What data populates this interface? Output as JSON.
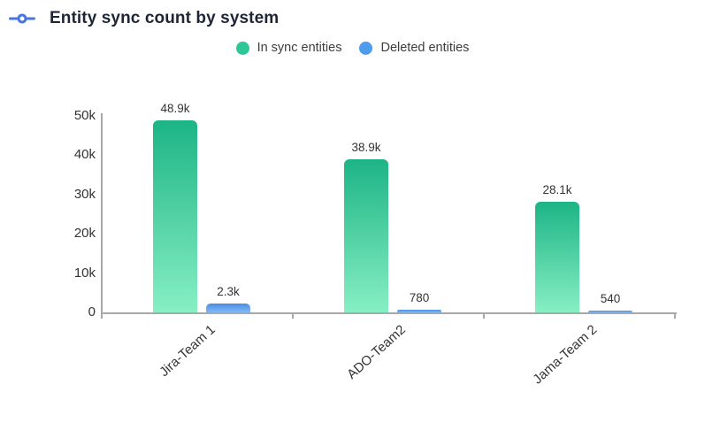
{
  "header": {
    "title": "Entity sync count by system",
    "icon": "sync-connector-icon",
    "icon_color": "#4775e4"
  },
  "chart_data": {
    "type": "bar",
    "title": "Entity sync count by system",
    "categories": [
      "Jira-Team 1",
      "ADO-Team2",
      "Jama-Team 2"
    ],
    "series": [
      {
        "name": "In sync entities",
        "values": [
          48900,
          38900,
          28100
        ],
        "value_labels": [
          "48.9k",
          "38.9k",
          "28.1k"
        ],
        "legend_color": "#2ec695",
        "gradient_top": "#1db485",
        "gradient_bottom": "#87efc4"
      },
      {
        "name": "Deleted entities",
        "values": [
          2300,
          780,
          540
        ],
        "value_labels": [
          "2.3k",
          "780",
          "540"
        ],
        "legend_color": "#4f9cec",
        "gradient_top": "#478de6",
        "gradient_bottom": "#83b8f3"
      }
    ],
    "xlabel": "",
    "ylabel": "",
    "y_ticks": [
      "0",
      "10k",
      "20k",
      "30k",
      "40k",
      "50k"
    ],
    "y_max": 50000,
    "grid": false,
    "legend_position": "top-center",
    "axis_color": "#a8a8a8",
    "text_color": "#333333"
  }
}
